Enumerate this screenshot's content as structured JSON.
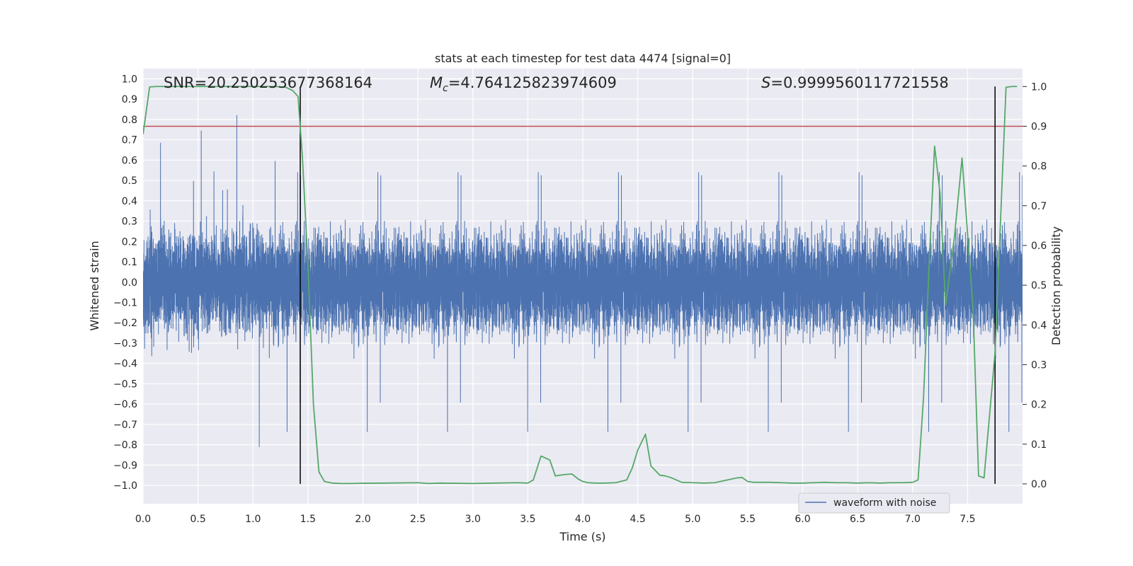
{
  "chart_data": {
    "type": "line",
    "title": "stats at each timestep for test data 4474 [signal=0]",
    "xlabel": "Time (s)",
    "ylabel": "Whitened strain",
    "y2label": "Detection probability",
    "xlim": [
      0.0,
      8.0
    ],
    "ylim": [
      -1.09,
      1.05
    ],
    "y2lim": [
      -0.05,
      1.045
    ],
    "x_ticks": [
      "0.0",
      "0.5",
      "1.0",
      "1.5",
      "2.0",
      "2.5",
      "3.0",
      "3.5",
      "4.0",
      "4.5",
      "5.0",
      "5.5",
      "6.0",
      "6.5",
      "7.0",
      "7.5"
    ],
    "y_ticks": [
      "1.0",
      "0.9",
      "0.8",
      "0.7",
      "0.6",
      "0.5",
      "0.4",
      "0.3",
      "0.2",
      "0.1",
      "0.0",
      "-0.1",
      "-0.2",
      "-0.3",
      "-0.4",
      "-0.5",
      "-0.6",
      "-0.7",
      "-0.8",
      "-0.9",
      "-1.0"
    ],
    "y2_ticks": [
      "1.0",
      "0.9",
      "0.8",
      "0.7",
      "0.6",
      "0.5",
      "0.4",
      "0.3",
      "0.2",
      "0.1",
      "0.0"
    ],
    "annotations": {
      "snr": "SNR=20.250253677368164",
      "mc_symbol": "M",
      "mc_sub": "c",
      "mc_value": "=4.764125823974609",
      "s_symbol": "S",
      "s_value": "=0.9999560117721558"
    },
    "legend": {
      "label": "waveform with noise",
      "placement": "lower-right"
    },
    "threshold": {
      "y2": 0.9,
      "color": "#c44e52"
    },
    "vlines": [
      1.43,
      7.75
    ],
    "vline_range_y2": [
      0.0,
      1.0
    ],
    "waveform": {
      "name": "waveform with noise",
      "color": "#4c72b0",
      "sample_rate_hz": 2048,
      "amplitude_range": [
        -0.85,
        0.84
      ],
      "note": "whitened noise, dense band ~±0.4 with spikes up to ~±0.8"
    },
    "series": [
      {
        "name": "detection probability",
        "color": "#55a868",
        "x": [
          0.0,
          0.06,
          0.12,
          0.2,
          0.3,
          0.4,
          0.5,
          0.6,
          0.7,
          0.8,
          0.9,
          1.0,
          1.1,
          1.2,
          1.3,
          1.36,
          1.41,
          1.45,
          1.5,
          1.55,
          1.6,
          1.65,
          1.72,
          1.8,
          1.9,
          2.0,
          2.2,
          2.5,
          2.6,
          2.7,
          3.0,
          3.2,
          3.4,
          3.5,
          3.55,
          3.62,
          3.7,
          3.75,
          3.82,
          3.9,
          3.96,
          4.0,
          4.05,
          4.12,
          4.2,
          4.3,
          4.4,
          4.45,
          4.5,
          4.57,
          4.62,
          4.7,
          4.75,
          4.8,
          4.9,
          5.0,
          5.1,
          5.2,
          5.3,
          5.4,
          5.45,
          5.5,
          5.55,
          5.6,
          5.7,
          5.8,
          5.9,
          6.0,
          6.1,
          6.2,
          6.3,
          6.4,
          6.5,
          6.6,
          6.7,
          6.8,
          6.9,
          7.0,
          7.05,
          7.1,
          7.15,
          7.2,
          7.25,
          7.3,
          7.38,
          7.45,
          7.55,
          7.6,
          7.65,
          7.75,
          7.85,
          7.9,
          7.95
        ],
        "values": [
          0.88,
          0.999,
          1.0,
          1.0,
          1.0,
          1.0,
          1.0,
          1.0,
          1.0,
          1.0,
          1.0,
          1.0,
          1.0,
          1.0,
          0.998,
          0.99,
          0.975,
          0.82,
          0.55,
          0.2,
          0.03,
          0.006,
          0.002,
          0.001,
          0.001,
          0.0015,
          0.002,
          0.003,
          0.001,
          0.002,
          0.001,
          0.002,
          0.003,
          0.002,
          0.01,
          0.07,
          0.06,
          0.02,
          0.023,
          0.025,
          0.012,
          0.006,
          0.003,
          0.002,
          0.002,
          0.003,
          0.01,
          0.04,
          0.085,
          0.125,
          0.045,
          0.022,
          0.02,
          0.016,
          0.004,
          0.003,
          0.002,
          0.003,
          0.009,
          0.015,
          0.016,
          0.006,
          0.004,
          0.004,
          0.004,
          0.003,
          0.002,
          0.002,
          0.003,
          0.004,
          0.003,
          0.003,
          0.002,
          0.003,
          0.002,
          0.003,
          0.003,
          0.004,
          0.01,
          0.22,
          0.55,
          0.85,
          0.73,
          0.45,
          0.62,
          0.82,
          0.44,
          0.02,
          0.015,
          0.33,
          0.998,
          1.0,
          1.0
        ]
      }
    ]
  }
}
